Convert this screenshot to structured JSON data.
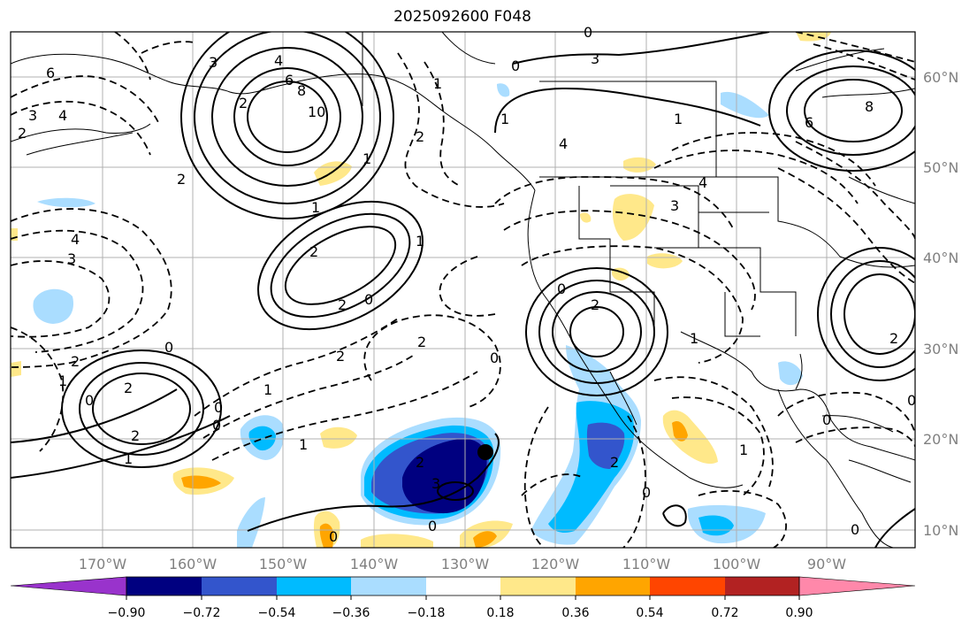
{
  "title": "2025092600 F048",
  "map": {
    "lon_labels": [
      "170°W",
      "160°W",
      "150°W",
      "140°W",
      "130°W",
      "120°W",
      "110°W",
      "100°W",
      "90°W"
    ],
    "lat_labels": [
      "60°N",
      "50°N",
      "40°N",
      "30°N",
      "20°N",
      "10°N"
    ],
    "contour_labels": [
      "6",
      "3",
      "4",
      "2",
      "3",
      "6",
      "8",
      "10",
      "4",
      "2",
      "1",
      "2",
      "1",
      "1",
      "2",
      "0",
      "2",
      "0",
      "4",
      "3",
      "2",
      "1",
      "0",
      "1",
      "2",
      "0",
      "2",
      "1",
      "0",
      "2",
      "2",
      "0",
      "1",
      "2",
      "3",
      "0",
      "1",
      "2",
      "0",
      "1",
      "3",
      "4",
      "0",
      "1",
      "3",
      "4",
      "8",
      "6",
      "0",
      "0",
      "1",
      "2",
      "2",
      "0",
      "0",
      "1",
      "2",
      "0",
      "0"
    ],
    "marker": "storm-center"
  },
  "colorbar": {
    "ticks": [
      "−0.90",
      "−0.72",
      "−0.54",
      "−0.36",
      "−0.18",
      "0.18",
      "0.36",
      "0.54",
      "0.72",
      "0.90"
    ],
    "colors": [
      "#9933cc",
      "#000080",
      "#3355cc",
      "#00bbff",
      "#aaddff",
      "#ffffff",
      "#ffe88a",
      "#ffa500",
      "#ff4500",
      "#b22222",
      "#ff88aa"
    ]
  }
}
